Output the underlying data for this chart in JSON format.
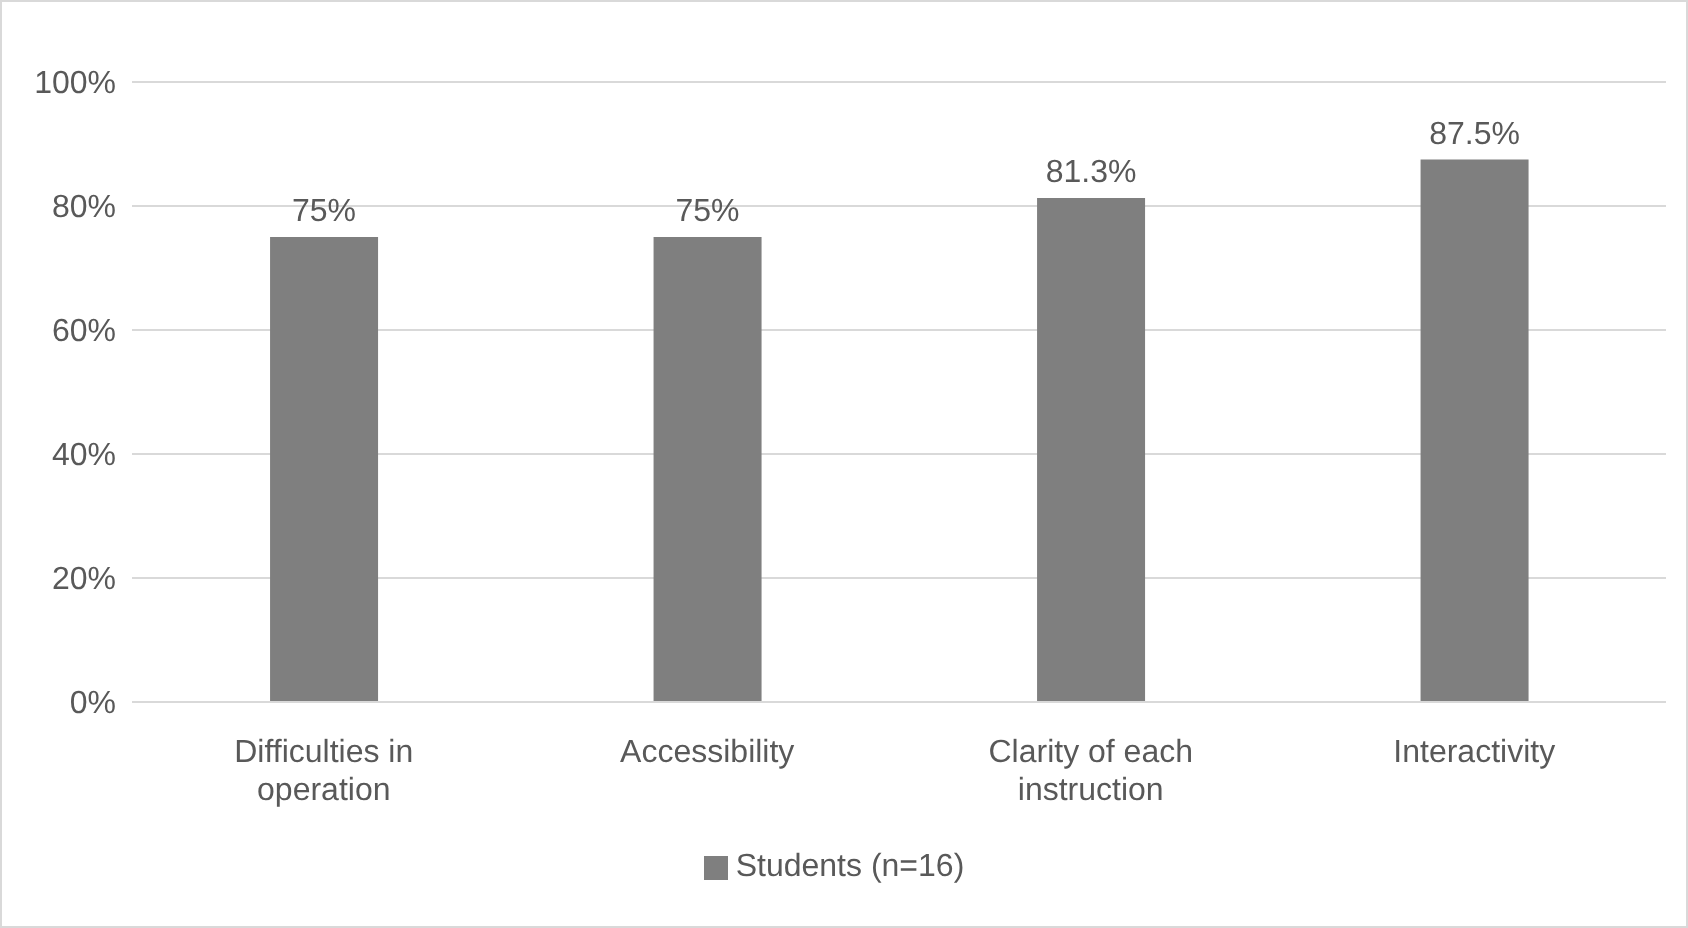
{
  "chart_data": {
    "type": "bar",
    "categories": [
      "Difficulties in operation",
      "Accessibility",
      "Clarity of each instruction",
      "Interactivity"
    ],
    "series": [
      {
        "name": "Students (n=16)",
        "color": "#7f7f7f",
        "values": [
          75,
          75,
          81.3,
          87.5
        ],
        "value_labels": [
          "75%",
          "75%",
          "81.3%",
          "87.5%"
        ]
      }
    ],
    "ylim": [
      0,
      100
    ],
    "yticks": [
      {
        "value": 0,
        "label": "0%"
      },
      {
        "value": 20,
        "label": "20%"
      },
      {
        "value": 40,
        "label": "40%"
      },
      {
        "value": 60,
        "label": "60%"
      },
      {
        "value": 80,
        "label": "80%"
      },
      {
        "value": 100,
        "label": "100%"
      }
    ],
    "grid": "y",
    "legend": "bottom"
  }
}
